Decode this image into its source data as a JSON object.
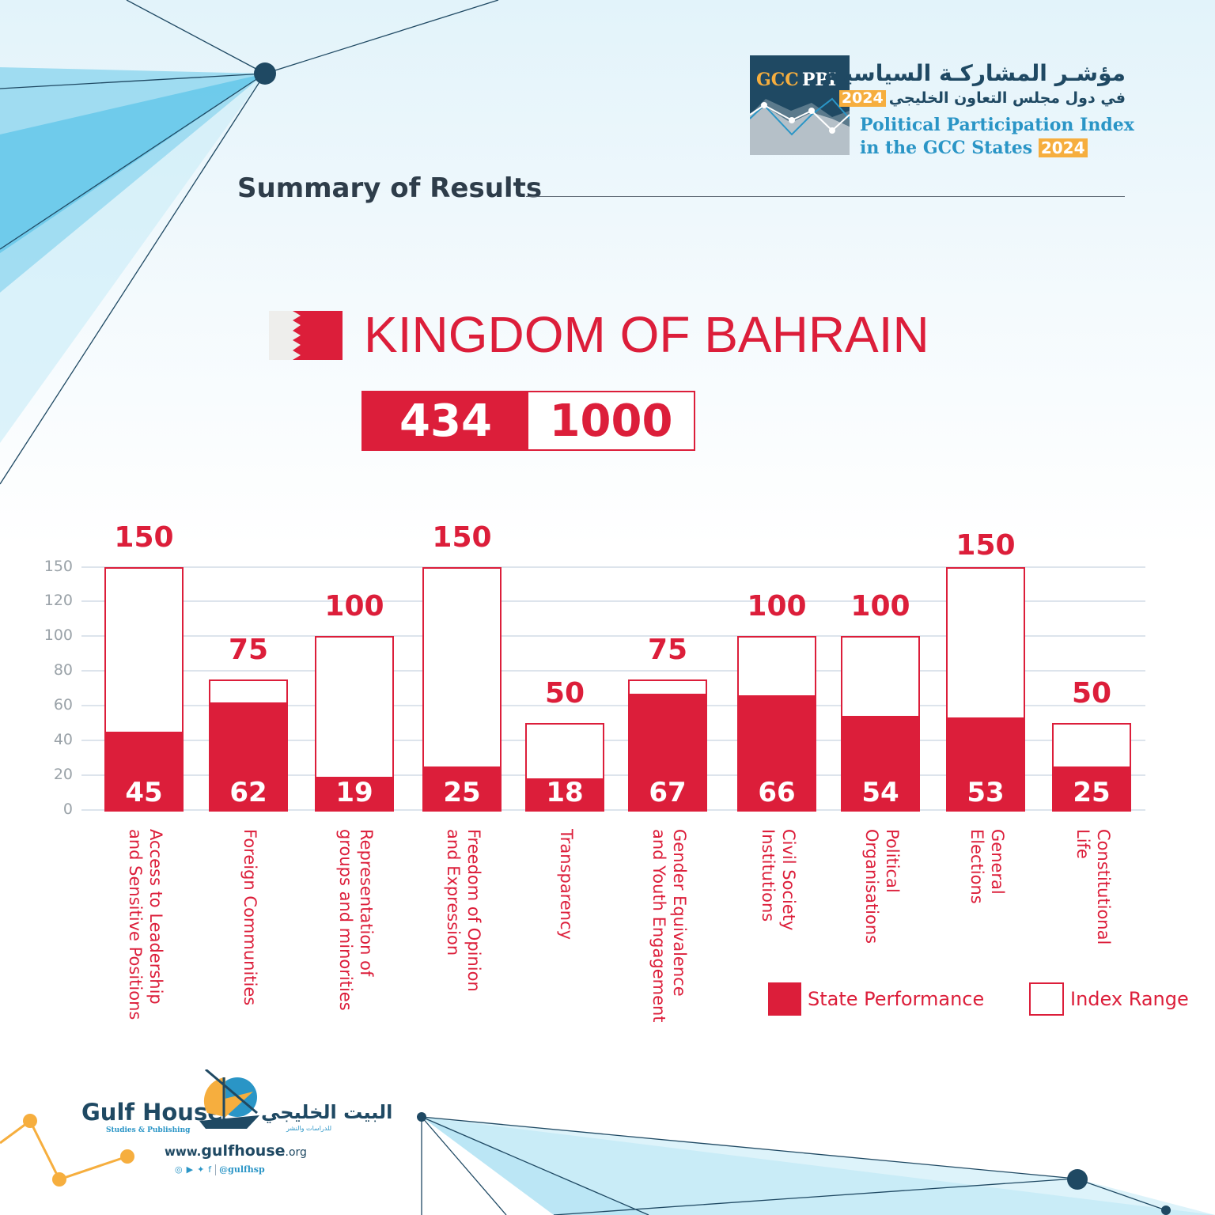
{
  "header": {
    "logo_gcc": "GCC",
    "logo_ppi": "PPI",
    "arabic_title_line1": "مؤشـر المشاركـة السياسيـة",
    "arabic_title_line2": "في دول مجلس التعاون الخليجي",
    "year": "2024",
    "english_title_line1": "Political Participation Index",
    "english_title_line2": "in the GCC States",
    "year_en": "2024"
  },
  "section_title": "Summary of Results",
  "country": "KINGDOM OF BAHRAIN",
  "score": {
    "value": "434",
    "max": "1000"
  },
  "colors": {
    "accent": "#dc1e3a",
    "navy": "#1f4963",
    "blue": "#2a95c6",
    "orange": "#f6ae3e"
  },
  "chart_data": {
    "type": "bar",
    "title": "",
    "categories": [
      "Access to Leadership\nand Sensitive Positions",
      "Foreign Communities",
      "Representation of\ngroups and minorities",
      "Freedom of Opinion\nand Expression",
      "Transparency",
      "Gender Equivalence\nand Youth Engagement",
      "Civil Society\nInstitutions",
      "Political\nOrganisations",
      "General\nElections",
      "Constitutional\nLife"
    ],
    "series": [
      {
        "name": "State Performance",
        "values": [
          45,
          62,
          19,
          25,
          18,
          67,
          66,
          54,
          53,
          25
        ]
      },
      {
        "name": "Index Range",
        "values": [
          150,
          75,
          100,
          150,
          50,
          75,
          100,
          100,
          150,
          50
        ]
      }
    ],
    "yticks": [
      0,
      20,
      40,
      60,
      80,
      100,
      120,
      150
    ],
    "ylim": [
      0,
      150
    ],
    "grid": true,
    "legend": "bottom-right"
  },
  "legend": {
    "performance": "State Performance",
    "range": "Index Range"
  },
  "footer": {
    "brand_en": "Gulf House",
    "brand_sub": "Studies & Publishing",
    "brand_ar": "البيت الخليجي",
    "brand_ar_sub": "للدراسات والنشر",
    "website_pre": "www.",
    "website_main": "gulfhouse",
    "website_tld": ".org",
    "handle": "@gulfhsp"
  }
}
